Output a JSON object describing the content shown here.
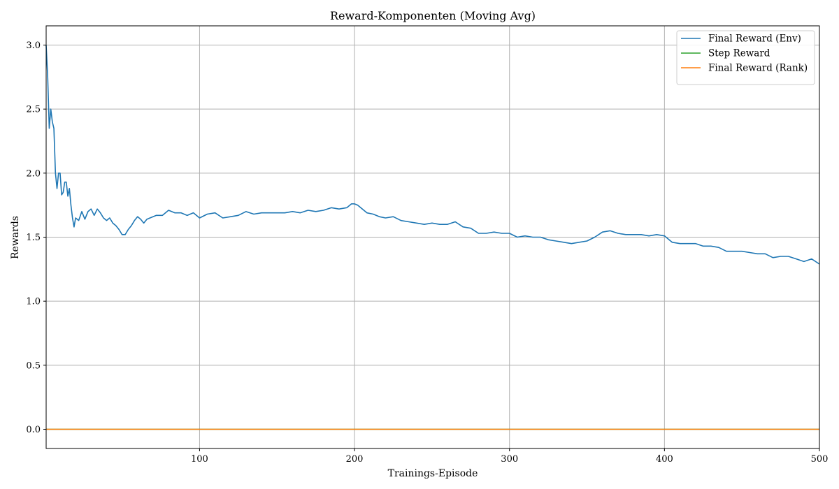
{
  "chart_data": {
    "type": "line",
    "title": "Reward-Komponenten (Moving Avg)",
    "xlabel": "Trainings-Episode",
    "ylabel": "Rewards",
    "xlim": [
      1,
      500
    ],
    "ylim": [
      -0.15,
      3.15
    ],
    "xticks": [
      100,
      200,
      300,
      400,
      500
    ],
    "yticks": [
      0.0,
      0.5,
      1.0,
      1.5,
      2.0,
      2.5,
      3.0
    ],
    "ytick_labels": [
      "0.0",
      "0.5",
      "1.0",
      "1.5",
      "2.0",
      "2.5",
      "3.0"
    ],
    "grid": true,
    "legend_position": "top-right",
    "series": [
      {
        "name": "Final Reward (Env)",
        "color": "#1f77b4",
        "points": [
          [
            1,
            3.0
          ],
          [
            2,
            2.75
          ],
          [
            3,
            2.35
          ],
          [
            4,
            2.5
          ],
          [
            5,
            2.4
          ],
          [
            6,
            2.35
          ],
          [
            7,
            2.0
          ],
          [
            8,
            1.88
          ],
          [
            9,
            2.0
          ],
          [
            10,
            2.0
          ],
          [
            11,
            1.83
          ],
          [
            12,
            1.85
          ],
          [
            13,
            1.93
          ],
          [
            14,
            1.93
          ],
          [
            15,
            1.82
          ],
          [
            16,
            1.88
          ],
          [
            17,
            1.75
          ],
          [
            18,
            1.65
          ],
          [
            19,
            1.58
          ],
          [
            20,
            1.65
          ],
          [
            22,
            1.63
          ],
          [
            24,
            1.7
          ],
          [
            26,
            1.64
          ],
          [
            28,
            1.7
          ],
          [
            30,
            1.72
          ],
          [
            32,
            1.67
          ],
          [
            34,
            1.72
          ],
          [
            36,
            1.69
          ],
          [
            38,
            1.65
          ],
          [
            40,
            1.63
          ],
          [
            42,
            1.65
          ],
          [
            44,
            1.61
          ],
          [
            46,
            1.59
          ],
          [
            48,
            1.56
          ],
          [
            50,
            1.52
          ],
          [
            52,
            1.52
          ],
          [
            54,
            1.56
          ],
          [
            56,
            1.59
          ],
          [
            58,
            1.63
          ],
          [
            60,
            1.66
          ],
          [
            62,
            1.64
          ],
          [
            64,
            1.61
          ],
          [
            66,
            1.64
          ],
          [
            68,
            1.65
          ],
          [
            72,
            1.67
          ],
          [
            76,
            1.67
          ],
          [
            80,
            1.71
          ],
          [
            84,
            1.69
          ],
          [
            88,
            1.69
          ],
          [
            92,
            1.67
          ],
          [
            96,
            1.69
          ],
          [
            100,
            1.65
          ],
          [
            105,
            1.68
          ],
          [
            110,
            1.69
          ],
          [
            115,
            1.65
          ],
          [
            120,
            1.66
          ],
          [
            125,
            1.67
          ],
          [
            130,
            1.7
          ],
          [
            135,
            1.68
          ],
          [
            140,
            1.69
          ],
          [
            145,
            1.69
          ],
          [
            150,
            1.69
          ],
          [
            155,
            1.69
          ],
          [
            160,
            1.7
          ],
          [
            165,
            1.69
          ],
          [
            170,
            1.71
          ],
          [
            175,
            1.7
          ],
          [
            180,
            1.71
          ],
          [
            185,
            1.73
          ],
          [
            190,
            1.72
          ],
          [
            195,
            1.73
          ],
          [
            198,
            1.76
          ],
          [
            200,
            1.76
          ],
          [
            202,
            1.75
          ],
          [
            205,
            1.72
          ],
          [
            208,
            1.69
          ],
          [
            212,
            1.68
          ],
          [
            216,
            1.66
          ],
          [
            220,
            1.65
          ],
          [
            225,
            1.66
          ],
          [
            230,
            1.63
          ],
          [
            235,
            1.62
          ],
          [
            240,
            1.61
          ],
          [
            245,
            1.6
          ],
          [
            250,
            1.61
          ],
          [
            255,
            1.6
          ],
          [
            260,
            1.6
          ],
          [
            265,
            1.62
          ],
          [
            270,
            1.58
          ],
          [
            275,
            1.57
          ],
          [
            280,
            1.53
          ],
          [
            285,
            1.53
          ],
          [
            290,
            1.54
          ],
          [
            295,
            1.53
          ],
          [
            300,
            1.53
          ],
          [
            305,
            1.5
          ],
          [
            310,
            1.51
          ],
          [
            315,
            1.5
          ],
          [
            320,
            1.5
          ],
          [
            325,
            1.48
          ],
          [
            330,
            1.47
          ],
          [
            335,
            1.46
          ],
          [
            340,
            1.45
          ],
          [
            345,
            1.46
          ],
          [
            350,
            1.47
          ],
          [
            355,
            1.5
          ],
          [
            360,
            1.54
          ],
          [
            365,
            1.55
          ],
          [
            370,
            1.53
          ],
          [
            375,
            1.52
          ],
          [
            380,
            1.52
          ],
          [
            385,
            1.52
          ],
          [
            390,
            1.51
          ],
          [
            395,
            1.52
          ],
          [
            400,
            1.51
          ],
          [
            405,
            1.46
          ],
          [
            410,
            1.45
          ],
          [
            415,
            1.45
          ],
          [
            420,
            1.45
          ],
          [
            425,
            1.43
          ],
          [
            430,
            1.43
          ],
          [
            435,
            1.42
          ],
          [
            440,
            1.39
          ],
          [
            445,
            1.39
          ],
          [
            450,
            1.39
          ],
          [
            455,
            1.38
          ],
          [
            460,
            1.37
          ],
          [
            465,
            1.37
          ],
          [
            470,
            1.34
          ],
          [
            475,
            1.35
          ],
          [
            480,
            1.35
          ],
          [
            485,
            1.33
          ],
          [
            490,
            1.31
          ],
          [
            495,
            1.33
          ],
          [
            500,
            1.29
          ]
        ]
      },
      {
        "name": "Step Reward",
        "color": "#2ca02c",
        "points": [
          [
            1,
            0.0
          ],
          [
            500,
            0.0
          ]
        ]
      },
      {
        "name": "Final Reward (Rank)",
        "color": "#ff7f0e",
        "points": [
          [
            1,
            0.0
          ],
          [
            500,
            0.0
          ]
        ]
      }
    ]
  }
}
